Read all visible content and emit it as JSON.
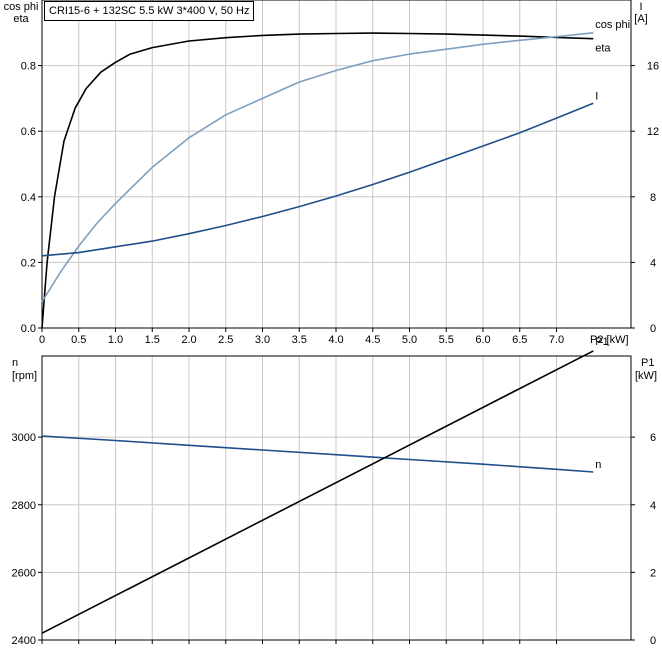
{
  "title": "CRI15-6 + 132SC   5.5 kW   3*400 V, 50 Hz",
  "chart_data": [
    {
      "type": "line",
      "left_axis_labels": [
        "cos phi",
        "eta"
      ],
      "right_axis_labels": [
        "I",
        "[A]"
      ],
      "xlabel": "P2 [kW]",
      "xlim": [
        0,
        7.6
      ],
      "x_ticks": [
        0,
        0.5,
        1.0,
        1.5,
        2.0,
        2.5,
        3.0,
        3.5,
        4.0,
        4.5,
        5.0,
        5.5,
        6.0,
        6.5,
        7.0
      ],
      "x_tick_labels": [
        "0",
        "0.5",
        "1.0",
        "1.5",
        "2.0",
        "2.5",
        "3.0",
        "3.5",
        "4.0",
        "4.5",
        "5.0",
        "5.5",
        "6.0",
        "6.5",
        "7.0"
      ],
      "ylim_left": [
        0,
        1.0
      ],
      "y_ticks_left": [
        0,
        0.2,
        0.4,
        0.6,
        0.8
      ],
      "y_tick_labels_left": [
        "0.0",
        "0.2",
        "0.4",
        "0.6",
        "0.8"
      ],
      "ylim_right": [
        0,
        20
      ],
      "y_ticks_right": [
        0,
        4,
        8,
        12,
        16
      ],
      "y_tick_labels_right": [
        "0",
        "4",
        "8",
        "12",
        "16"
      ],
      "grid": true,
      "series": [
        {
          "name": "eta",
          "axis": "left",
          "color": "#000000",
          "x": [
            0,
            0.07,
            0.17,
            0.3,
            0.45,
            0.6,
            0.8,
            1.0,
            1.2,
            1.5,
            2.0,
            2.5,
            3.0,
            3.5,
            4.0,
            4.5,
            5.0,
            5.5,
            6.0,
            6.5,
            7.0,
            7.5
          ],
          "y": [
            0,
            0.2,
            0.4,
            0.57,
            0.67,
            0.73,
            0.78,
            0.81,
            0.835,
            0.855,
            0.875,
            0.885,
            0.892,
            0.896,
            0.898,
            0.899,
            0.898,
            0.896,
            0.893,
            0.89,
            0.886,
            0.882
          ]
        },
        {
          "name": "cos phi",
          "axis": "left",
          "color": "#7f9fbf",
          "x": [
            0,
            0.25,
            0.5,
            0.75,
            1.0,
            1.5,
            2.0,
            2.5,
            3.0,
            3.5,
            4.0,
            4.5,
            5.0,
            5.5,
            6.0,
            6.5,
            7.0,
            7.5
          ],
          "y": [
            0.08,
            0.17,
            0.25,
            0.32,
            0.38,
            0.49,
            0.58,
            0.65,
            0.7,
            0.75,
            0.785,
            0.815,
            0.835,
            0.85,
            0.865,
            0.877,
            0.888,
            0.9
          ]
        },
        {
          "name": "I",
          "axis": "right",
          "color": "#1f4e8c",
          "x": [
            0,
            0.5,
            1.0,
            1.5,
            2.0,
            2.5,
            3.0,
            3.5,
            4.0,
            4.5,
            5.0,
            5.5,
            6.0,
            6.5,
            7.0,
            7.5
          ],
          "y": [
            4.4,
            4.6,
            4.95,
            5.3,
            5.75,
            6.25,
            6.8,
            7.4,
            8.05,
            8.75,
            9.5,
            10.3,
            11.1,
            11.9,
            12.8,
            13.7
          ]
        }
      ]
    },
    {
      "type": "line",
      "left_axis_labels": [
        "n",
        "[rpm]"
      ],
      "right_axis_labels": [
        "P1",
        "[kW]"
      ],
      "xlim": [
        0,
        7.6
      ],
      "x_ticks": [
        0,
        0.5,
        1.0,
        1.5,
        2.0,
        2.5,
        3.0,
        3.5,
        4.0,
        4.5,
        5.0,
        5.5,
        6.0,
        6.5,
        7.0
      ],
      "ylim_left": [
        2400,
        3240
      ],
      "y_ticks_left": [
        2400,
        2600,
        2800,
        3000
      ],
      "y_tick_labels_left": [
        "2400",
        "2600",
        "2800",
        "3000"
      ],
      "ylim_right": [
        0,
        8.4
      ],
      "y_ticks_right": [
        0,
        2,
        4,
        6
      ],
      "y_tick_labels_right": [
        "0",
        "2",
        "4",
        "6"
      ],
      "grid": true,
      "series": [
        {
          "name": "n",
          "axis": "left",
          "color": "#1f4e8c",
          "x": [
            0,
            1.0,
            2.0,
            3.0,
            4.0,
            5.0,
            6.0,
            7.0,
            7.5
          ],
          "y": [
            3003,
            2990,
            2976,
            2962,
            2948,
            2934,
            2920,
            2905,
            2897
          ]
        },
        {
          "name": "P1",
          "axis": "right",
          "color": "#000000",
          "x": [
            0,
            7.5
          ],
          "y": [
            0.2,
            8.55
          ]
        }
      ]
    }
  ]
}
